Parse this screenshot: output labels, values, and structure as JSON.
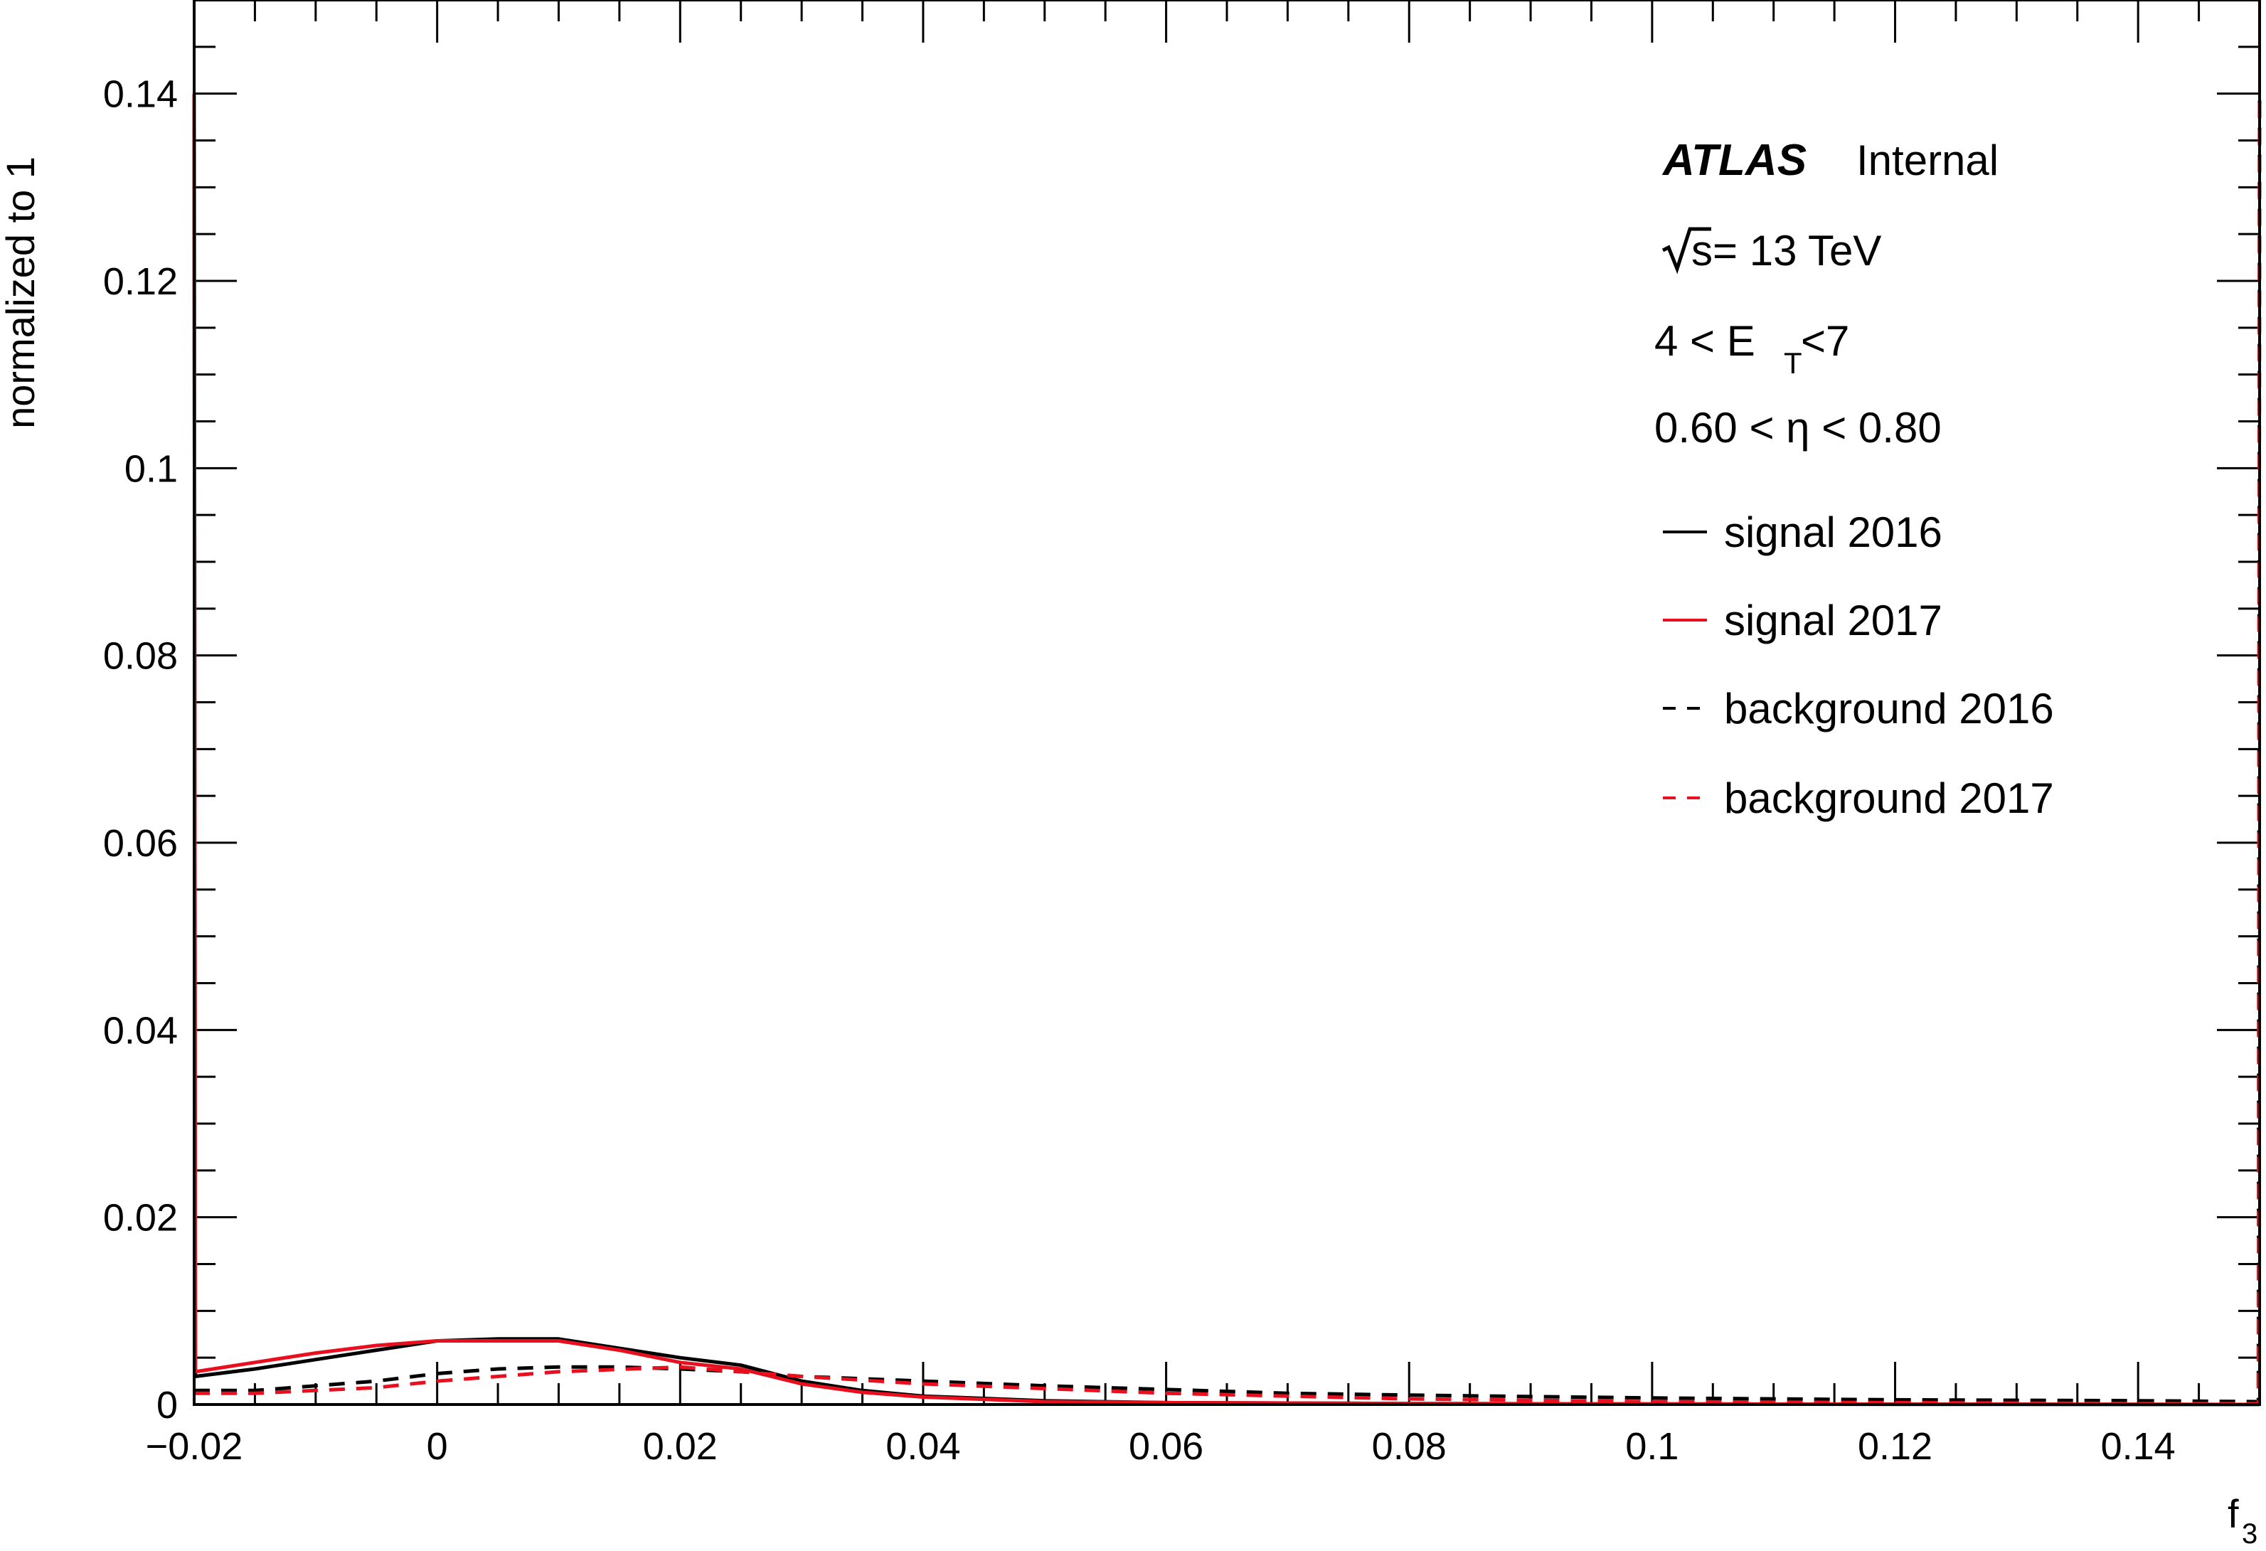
{
  "chart_data": {
    "type": "line",
    "xlabel": "f",
    "xlabel_sub": "3",
    "ylabel": "normalized to 1",
    "xlim": [
      -0.02,
      0.15
    ],
    "ylim": [
      0,
      0.15
    ],
    "x_ticks": [
      {
        "value": -0.02,
        "label": "−0.02"
      },
      {
        "value": 0,
        "label": "0"
      },
      {
        "value": 0.02,
        "label": "0.02"
      },
      {
        "value": 0.04,
        "label": "0.04"
      },
      {
        "value": 0.06,
        "label": "0.06"
      },
      {
        "value": 0.08,
        "label": "0.08"
      },
      {
        "value": 0.1,
        "label": "0.1"
      },
      {
        "value": 0.12,
        "label": "0.12"
      },
      {
        "value": 0.14,
        "label": "0.14"
      }
    ],
    "y_ticks": [
      {
        "value": 0,
        "label": "0"
      },
      {
        "value": 0.02,
        "label": "0.02"
      },
      {
        "value": 0.04,
        "label": "0.04"
      },
      {
        "value": 0.06,
        "label": "0.06"
      },
      {
        "value": 0.08,
        "label": "0.08"
      },
      {
        "value": 0.1,
        "label": "0.1"
      },
      {
        "value": 0.12,
        "label": "0.12"
      },
      {
        "value": 0.14,
        "label": "0.14"
      }
    ],
    "x_minor_step": 0.005,
    "y_minor_step": 0.005,
    "legend_position": "top-right",
    "series": [
      {
        "name": "signal 2016",
        "color": "#000000",
        "dash": "solid",
        "points": [
          [
            -0.02,
            0.14
          ],
          [
            -0.0199,
            0.003
          ],
          [
            -0.015,
            0.0038
          ],
          [
            -0.01,
            0.0048
          ],
          [
            -0.005,
            0.0058
          ],
          [
            0,
            0.0068
          ],
          [
            0.005,
            0.007
          ],
          [
            0.01,
            0.007
          ],
          [
            0.015,
            0.006
          ],
          [
            0.02,
            0.005
          ],
          [
            0.025,
            0.0042
          ],
          [
            0.03,
            0.0025
          ],
          [
            0.035,
            0.0015
          ],
          [
            0.04,
            0.0009
          ],
          [
            0.05,
            0.0004
          ],
          [
            0.06,
            0.0002
          ],
          [
            0.08,
            0.0001
          ],
          [
            0.1,
            5e-05
          ],
          [
            0.15,
            0.0
          ]
        ]
      },
      {
        "name": "signal 2017",
        "color": "#e8101e",
        "dash": "solid",
        "points": [
          [
            -0.02,
            0.14
          ],
          [
            -0.0199,
            0.0035
          ],
          [
            -0.015,
            0.0045
          ],
          [
            -0.01,
            0.0055
          ],
          [
            -0.005,
            0.0063
          ],
          [
            0,
            0.0068
          ],
          [
            0.005,
            0.0068
          ],
          [
            0.01,
            0.0068
          ],
          [
            0.015,
            0.0058
          ],
          [
            0.02,
            0.0045
          ],
          [
            0.025,
            0.0038
          ],
          [
            0.03,
            0.0022
          ],
          [
            0.035,
            0.0013
          ],
          [
            0.04,
            0.0008
          ],
          [
            0.05,
            0.0003
          ],
          [
            0.06,
            0.0002
          ],
          [
            0.08,
            0.0001
          ],
          [
            0.1,
            5e-05
          ],
          [
            0.15,
            0.0
          ]
        ]
      },
      {
        "name": "background 2016",
        "color": "#000000",
        "dash": "dashed",
        "points": [
          [
            -0.02,
            0.0015
          ],
          [
            -0.015,
            0.0015
          ],
          [
            -0.01,
            0.002
          ],
          [
            -0.005,
            0.0025
          ],
          [
            0,
            0.0033
          ],
          [
            0.005,
            0.0038
          ],
          [
            0.01,
            0.004
          ],
          [
            0.015,
            0.004
          ],
          [
            0.02,
            0.0038
          ],
          [
            0.025,
            0.0035
          ],
          [
            0.03,
            0.003
          ],
          [
            0.04,
            0.0025
          ],
          [
            0.05,
            0.002
          ],
          [
            0.06,
            0.0016
          ],
          [
            0.07,
            0.0012
          ],
          [
            0.08,
            0.001
          ],
          [
            0.1,
            0.0007
          ],
          [
            0.12,
            0.0005
          ],
          [
            0.14,
            0.0004
          ],
          [
            0.1499,
            0.0003
          ],
          [
            0.15,
            0.14
          ]
        ]
      },
      {
        "name": "background 2017",
        "color": "#e8101e",
        "dash": "dashed",
        "points": [
          [
            -0.02,
            0.0012
          ],
          [
            -0.015,
            0.0012
          ],
          [
            -0.01,
            0.0015
          ],
          [
            -0.005,
            0.0018
          ],
          [
            0,
            0.0025
          ],
          [
            0.01,
            0.0035
          ],
          [
            0.02,
            0.004
          ],
          [
            0.03,
            0.003
          ],
          [
            0.04,
            0.0022
          ],
          [
            0.06,
            0.0012
          ],
          [
            0.08,
            0.0006
          ],
          [
            0.1,
            0.0003
          ],
          [
            0.12,
            0.0002
          ],
          [
            0.14,
            0.0001
          ],
          [
            0.1499,
            0.0001
          ],
          [
            0.15,
            0.14
          ]
        ]
      }
    ],
    "annotations": {
      "experiment": "ATLAS",
      "status": "Internal",
      "energy": "s= 13 TeV",
      "et_cut_pre": "4 < E",
      "et_cut_sub": "T",
      "et_cut_post": " <7",
      "eta_cut": "0.60 < η < 0.80"
    }
  }
}
